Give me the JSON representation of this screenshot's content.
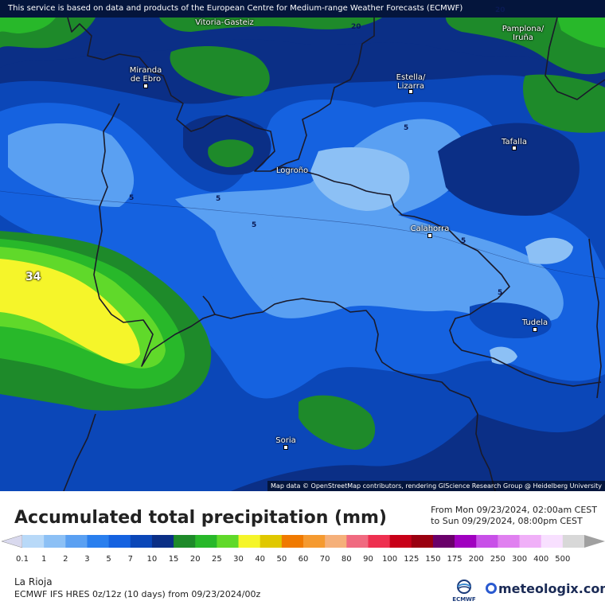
{
  "disclaimer": "This service is based on data and products of the European Centre for Medium-range Weather Forecasts (ECMWF)",
  "attribution": "Map data © OpenStreetMap contributors, rendering GIScience Research Group @ Heidelberg University",
  "cities": [
    {
      "id": "vitoria",
      "name": "Vitoria-Gasteiz"
    },
    {
      "id": "pamplona",
      "name": "Pamplona/\nIruña"
    },
    {
      "id": "miranda",
      "name": "Miranda\nde Ebro"
    },
    {
      "id": "estella",
      "name": "Estella/\nLizarra"
    },
    {
      "id": "tafalla",
      "name": "Tafalla"
    },
    {
      "id": "logrono",
      "name": "Logroño"
    },
    {
      "id": "calahorra",
      "name": "Calahorra"
    },
    {
      "id": "tudela",
      "name": "Tudela"
    },
    {
      "id": "soria",
      "name": "Soria"
    }
  ],
  "isolines": [
    "20",
    "20",
    "5",
    "5",
    "5",
    "5",
    "5",
    "5"
  ],
  "max_value": "34",
  "legend": {
    "title": "Accumulated total precipitation (mm)",
    "from": "From Mon 09/23/2024, 02:00am CEST",
    "to": "to Sun 09/29/2024, 08:00pm CEST",
    "colors": [
      "#d9d9ee",
      "#b8d9f8",
      "#8cc0f5",
      "#5aa0f2",
      "#2a7fee",
      "#1562e0",
      "#0b47b8",
      "#0b2f86",
      "#1e8a2a",
      "#28b82a",
      "#60d92a",
      "#f5f52a",
      "#e0c800",
      "#f07a00",
      "#f59a30",
      "#f5b07a",
      "#f06a80",
      "#ee3050",
      "#c80018",
      "#9a0010",
      "#6a006a",
      "#a000c0",
      "#c850e8",
      "#e080f0",
      "#f0b0f8",
      "#f8e0ff",
      "#d8d8d8",
      "#a0a0a0"
    ],
    "labels": [
      "0.1",
      "1",
      "2",
      "3",
      "5",
      "7",
      "10",
      "15",
      "20",
      "25",
      "30",
      "40",
      "50",
      "60",
      "70",
      "80",
      "90",
      "100",
      "125",
      "150",
      "175",
      "200",
      "250",
      "300",
      "400",
      "500"
    ]
  },
  "region": "La Rioja",
  "model": "ECMWF IFS HRES 0z/12z (10 days) from 09/23/2024/00z",
  "ecmwf_label": "ECMWF",
  "brand": "meteologix.com"
}
